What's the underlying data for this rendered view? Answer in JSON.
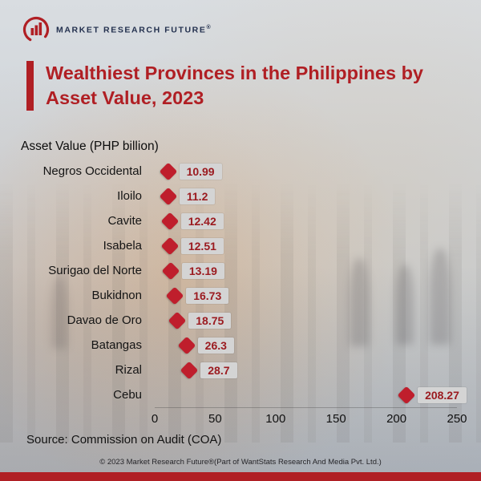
{
  "logo": {
    "text": "MARKET RESEARCH FUTURE",
    "reg": "®"
  },
  "title": "Wealthiest Provinces in the Philippines by Asset Value, 2023",
  "axis_label": "Asset Value (PHP billion)",
  "chart_data": {
    "type": "scatter",
    "orientation": "horizontal-lollipop",
    "categories": [
      "Negros Occidental",
      "Iloilo",
      "Cavite",
      "Isabela",
      "Surigao del Norte",
      "Bukidnon",
      "Davao de Oro",
      "Batangas",
      "Rizal",
      "Cebu"
    ],
    "values": [
      10.99,
      11.2,
      12.42,
      12.51,
      13.19,
      16.73,
      18.75,
      26.3,
      28.7,
      208.27
    ],
    "value_labels": [
      "10.99",
      "11.2",
      "12.42",
      "12.51",
      "13.19",
      "16.73",
      "18.75",
      "26.3",
      "28.7",
      "208.27"
    ],
    "title": "Wealthiest Provinces in the Philippines by Asset Value, 2023",
    "xlabel": "Asset Value (PHP billion)",
    "xlim": [
      0,
      250
    ],
    "xticks": [
      0,
      50,
      100,
      150,
      200,
      250
    ],
    "marker": "diamond",
    "marker_color": "#bf1e2c",
    "label_box_color": "#d4d4d4",
    "label_text_color": "#9b1b20",
    "grid": false,
    "legend": "none"
  },
  "source": "Source: Commission on Audit (COA)",
  "footer": "© 2023 Market Research Future®(Part of WantStats Research And Media Pvt. Ltd.)"
}
